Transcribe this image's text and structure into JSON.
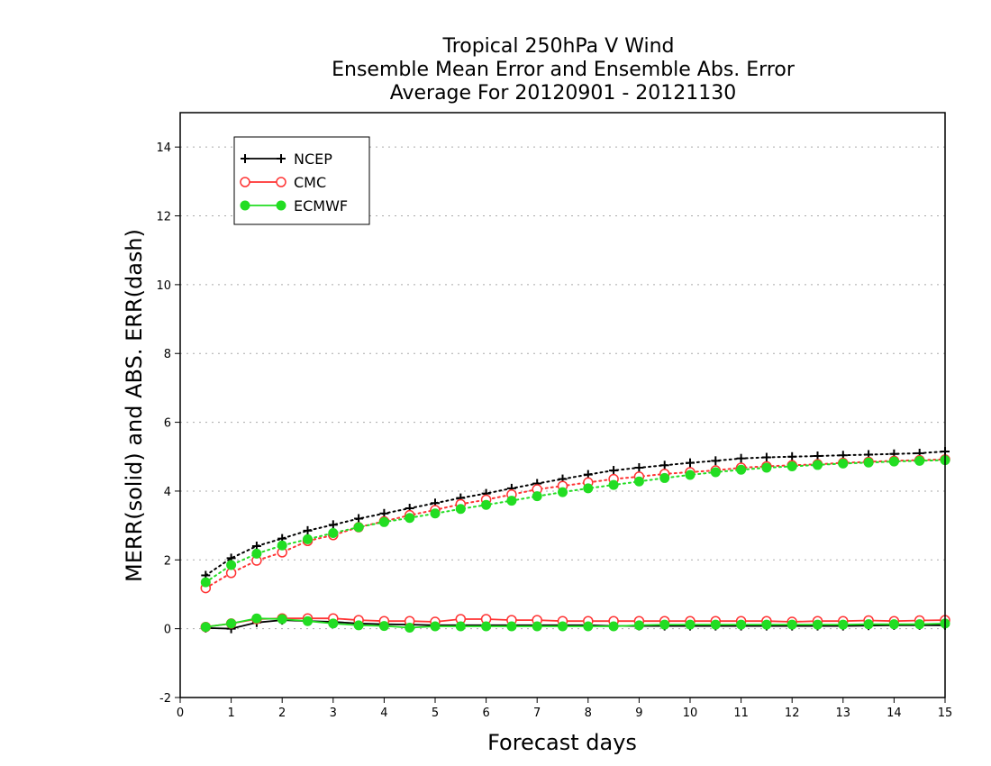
{
  "colors": {
    "NCEP": "#000000",
    "CMC": "#ff3333",
    "ECMWF": "#22dd22",
    "grid": "#aaaaaa"
  },
  "chart_data": {
    "type": "line",
    "title": [
      "Tropical 250hPa V Wind",
      "Ensemble Mean Error and Ensemble Abs. Error",
      "Average For 20120901 - 20121130"
    ],
    "xlabel": "Forecast days",
    "ylabel": "MERR(solid) and ABS. ERR(dash)",
    "xlim": [
      0,
      15
    ],
    "ylim": [
      -2,
      15
    ],
    "xticks": [
      0,
      1,
      2,
      3,
      4,
      5,
      6,
      7,
      8,
      9,
      10,
      11,
      12,
      13,
      14,
      15
    ],
    "yticks": [
      -2,
      0,
      2,
      4,
      6,
      8,
      10,
      12,
      14
    ],
    "grid": "horizontal dotted",
    "legend_position": "top-left",
    "x": [
      0.5,
      1,
      1.5,
      2,
      2.5,
      3,
      3.5,
      4,
      4.5,
      5,
      5.5,
      6,
      6.5,
      7,
      7.5,
      8,
      8.5,
      9,
      9.5,
      10,
      10.5,
      11,
      11.5,
      12,
      12.5,
      13,
      13.5,
      14,
      14.5,
      15
    ],
    "series": [
      {
        "name": "NCEP",
        "marker": "plus",
        "kind": "abs_error",
        "values": [
          1.55,
          2.05,
          2.4,
          2.62,
          2.85,
          3.02,
          3.2,
          3.35,
          3.5,
          3.65,
          3.8,
          3.93,
          4.08,
          4.22,
          4.35,
          4.48,
          4.6,
          4.68,
          4.75,
          4.82,
          4.88,
          4.95,
          4.98,
          5.0,
          5.02,
          5.04,
          5.06,
          5.08,
          5.1,
          5.15
        ]
      },
      {
        "name": "CMC",
        "marker": "open-circle",
        "kind": "abs_error",
        "values": [
          1.18,
          1.62,
          1.98,
          2.22,
          2.55,
          2.72,
          2.95,
          3.12,
          3.3,
          3.45,
          3.62,
          3.75,
          3.9,
          4.05,
          4.15,
          4.25,
          4.35,
          4.42,
          4.5,
          4.55,
          4.6,
          4.68,
          4.72,
          4.75,
          4.78,
          4.82,
          4.85,
          4.88,
          4.9,
          4.92
        ]
      },
      {
        "name": "ECMWF",
        "marker": "filled-circle",
        "kind": "abs_error",
        "values": [
          1.35,
          1.85,
          2.18,
          2.42,
          2.6,
          2.78,
          2.95,
          3.1,
          3.22,
          3.35,
          3.48,
          3.6,
          3.72,
          3.85,
          3.97,
          4.08,
          4.18,
          4.28,
          4.38,
          4.47,
          4.55,
          4.62,
          4.68,
          4.72,
          4.76,
          4.8,
          4.83,
          4.86,
          4.88,
          4.9
        ]
      },
      {
        "name": "NCEP",
        "marker": "plus",
        "kind": "mean_error",
        "values": [
          0.02,
          0.0,
          0.18,
          0.25,
          0.22,
          0.2,
          0.15,
          0.13,
          0.12,
          0.1,
          0.1,
          0.1,
          0.1,
          0.1,
          0.1,
          0.1,
          0.08,
          0.08,
          0.08,
          0.08,
          0.08,
          0.08,
          0.08,
          0.08,
          0.08,
          0.08,
          0.09,
          0.1,
          0.1,
          0.1
        ]
      },
      {
        "name": "CMC",
        "marker": "open-circle",
        "kind": "mean_error",
        "values": [
          0.05,
          0.15,
          0.28,
          0.3,
          0.3,
          0.3,
          0.25,
          0.22,
          0.22,
          0.2,
          0.28,
          0.28,
          0.25,
          0.25,
          0.22,
          0.22,
          0.22,
          0.22,
          0.22,
          0.22,
          0.22,
          0.22,
          0.22,
          0.2,
          0.22,
          0.22,
          0.24,
          0.22,
          0.24,
          0.25
        ]
      },
      {
        "name": "ECMWF",
        "marker": "filled-circle",
        "kind": "mean_error",
        "values": [
          0.05,
          0.15,
          0.3,
          0.28,
          0.22,
          0.15,
          0.1,
          0.08,
          0.03,
          0.07,
          0.07,
          0.07,
          0.07,
          0.07,
          0.07,
          0.07,
          0.07,
          0.1,
          0.12,
          0.12,
          0.12,
          0.12,
          0.12,
          0.12,
          0.12,
          0.12,
          0.13,
          0.13,
          0.13,
          0.15
        ]
      }
    ],
    "legend": [
      "NCEP",
      "CMC",
      "ECMWF"
    ]
  }
}
